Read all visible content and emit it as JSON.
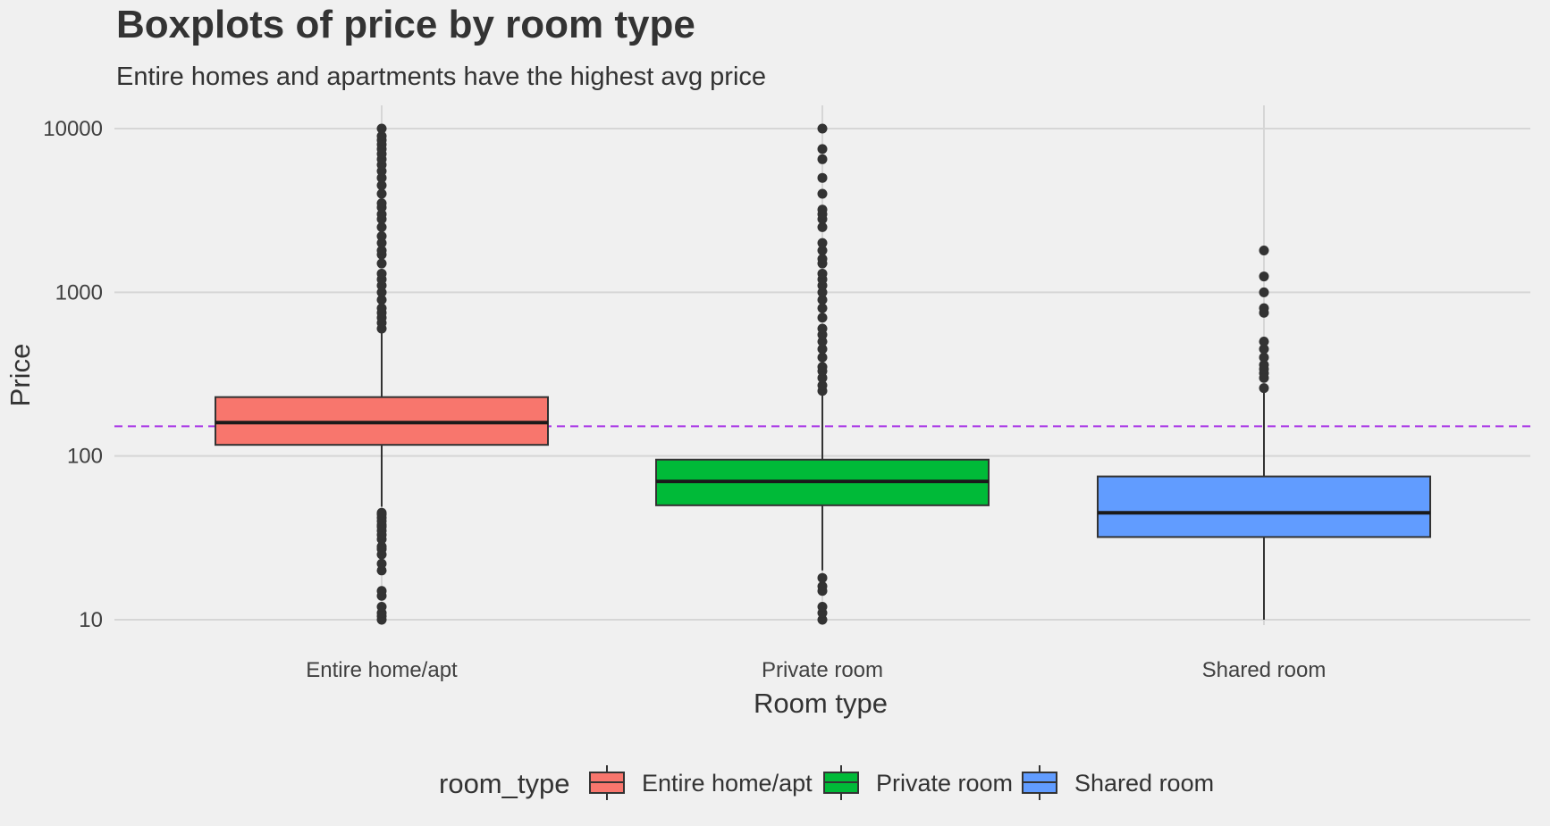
{
  "chart_data": {
    "type": "boxplot",
    "title": "Boxplots of price by room type",
    "subtitle": "Entire homes and apartments have the highest avg price",
    "xlabel": "Room type",
    "ylabel": "Price",
    "y_scale": "log10",
    "ylim": [
      10,
      10000
    ],
    "y_ticks": [
      {
        "value": 10,
        "label": "10"
      },
      {
        "value": 100,
        "label": "100"
      },
      {
        "value": 1000,
        "label": "1000"
      },
      {
        "value": 10000,
        "label": "10000"
      }
    ],
    "grid": true,
    "reference_line": {
      "value": 152,
      "style": "dashed",
      "color": "#a833e6"
    },
    "legend": {
      "title": "room_type",
      "position": "bottom"
    },
    "colors": {
      "Entire home/apt": "#f8766d",
      "Private room": "#00ba38",
      "Shared room": "#619cff"
    },
    "categories": [
      "Entire home/apt",
      "Private room",
      "Shared room"
    ],
    "boxes": [
      {
        "category": "Entire home/apt",
        "whisker_low": 49,
        "q1": 117,
        "median": 160,
        "q3": 229,
        "whisker_high": 600,
        "outliers": [
          10,
          10.5,
          11,
          12,
          14,
          15,
          20,
          22,
          25,
          27,
          28,
          31,
          33,
          35,
          37,
          38,
          40,
          42,
          44,
          45,
          600,
          650,
          700,
          750,
          800,
          900,
          1000,
          1100,
          1200,
          1300,
          1500,
          1700,
          1800,
          2000,
          2200,
          2500,
          2800,
          3000,
          3300,
          3500,
          4000,
          4500,
          5000,
          5500,
          6000,
          6500,
          7000,
          7500,
          8000,
          8500,
          9000,
          10000
        ]
      },
      {
        "category": "Private room",
        "whisker_low": 20,
        "q1": 50,
        "median": 70,
        "q3": 95,
        "whisker_high": 250,
        "outliers": [
          10,
          11,
          12,
          15,
          16,
          18,
          250,
          270,
          300,
          330,
          350,
          400,
          450,
          500,
          550,
          600,
          700,
          800,
          900,
          1000,
          1100,
          1200,
          1300,
          1500,
          1600,
          1800,
          2000,
          2500,
          2800,
          3000,
          3200,
          4000,
          5000,
          6500,
          7500,
          10000
        ]
      },
      {
        "category": "Shared room",
        "whisker_low": 10,
        "q1": 32,
        "median": 45,
        "q3": 75,
        "whisker_high": 250,
        "outliers": [
          260,
          300,
          320,
          340,
          360,
          400,
          450,
          500,
          750,
          800,
          1000,
          1250,
          1800
        ]
      }
    ]
  }
}
